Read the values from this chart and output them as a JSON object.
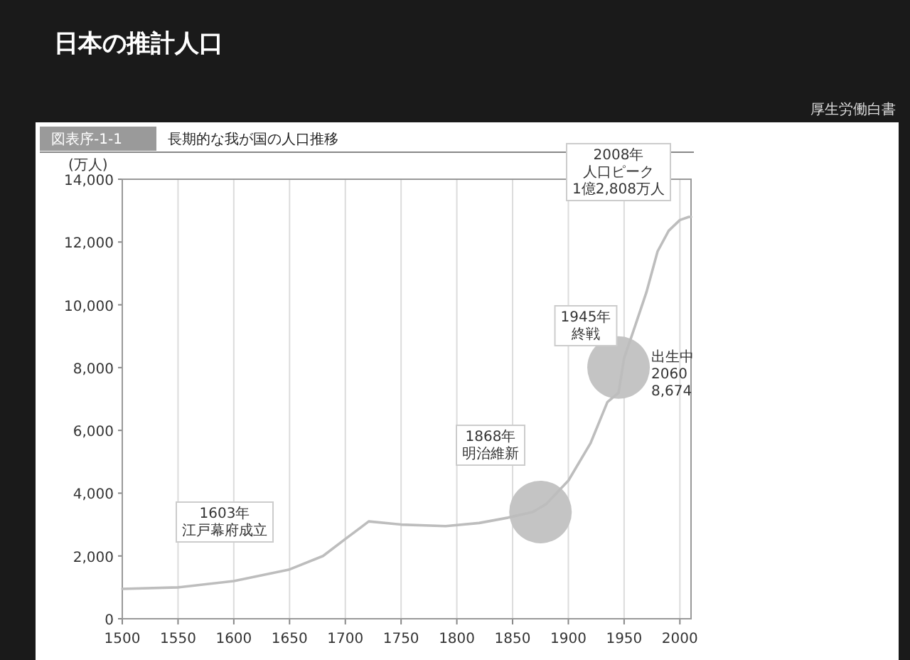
{
  "chart_data": {
    "type": "line",
    "title": "日本の推計人口",
    "subtitle": "図表序-1-1 長期的な我が国の人口推移",
    "ylabel": "(万人)",
    "annotations": [
      "厚生労働白書",
      "1603年",
      "江戸幕府成立",
      "1868年",
      "明治維新",
      "1945年",
      "終戦",
      "2008年",
      "人口ピーク",
      "1億2,808万人",
      "出生中\n2060\n8,674"
    ],
    "x": [
      1500,
      1550,
      1600,
      1650,
      1680,
      1700,
      1721,
      1750,
      1790,
      1820,
      1846,
      1868,
      1880,
      1900,
      1920,
      1935,
      1945,
      1950,
      1960,
      1970,
      1980,
      1990,
      2000,
      2008,
      2010
    ],
    "values": [
      950,
      1000,
      1200,
      1570,
      2000,
      2540,
      3100,
      3000,
      2950,
      3050,
      3220,
      3400,
      3650,
      4400,
      5600,
      6900,
      7200,
      8300,
      9340,
      10400,
      11700,
      12360,
      12700,
      12800,
      12800
    ],
    "color": "#bdbdbd",
    "xlim": [
      1500,
      2010
    ],
    "ylim": [
      0,
      14000
    ],
    "xticks": [
      1500,
      1550,
      1600,
      1650,
      1700,
      1750,
      1800,
      1850,
      1900,
      1950,
      2000
    ],
    "yticks": [
      {
        "value": 0,
        "label": "0"
      },
      {
        "value": 2000,
        "label": "2,000"
      },
      {
        "value": 4000,
        "label": "4,000"
      },
      {
        "value": 6000,
        "label": "6,000"
      },
      {
        "value": 8000,
        "label": "8,000"
      },
      {
        "value": 10000,
        "label": "10,000"
      },
      {
        "value": 12000,
        "label": "12,000"
      },
      {
        "value": 14000,
        "label": "14,000"
      }
    ],
    "grid": "x"
  }
}
